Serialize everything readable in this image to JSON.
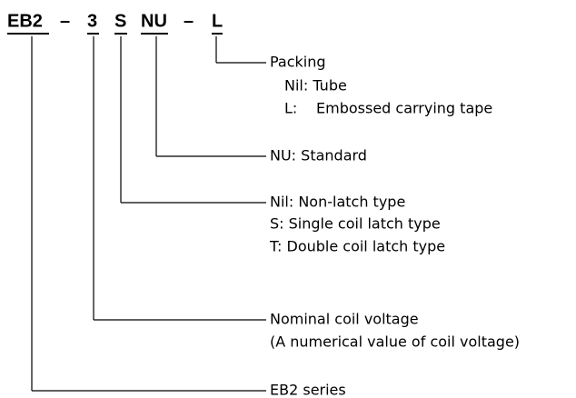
{
  "code": [
    "EB2",
    "–",
    "3",
    "S",
    "NU",
    "–",
    "L"
  ],
  "fields": [
    {
      "title": "Packing",
      "lines": [
        "Nil: Tube"
      ],
      "options": [
        {
          "key": "L:",
          "text": "Embossed carrying tape"
        }
      ]
    },
    {
      "title": "NU: Standard",
      "lines": [],
      "options": []
    },
    {
      "title": "Nil: Non-latch type",
      "lines": [
        "S: Single coil latch type",
        "T: Double coil latch type"
      ],
      "options": []
    },
    {
      "title": "Nominal coil voltage",
      "lines": [
        "(A numerical value of coil voltage)"
      ],
      "options": []
    },
    {
      "title": "EB2 series",
      "lines": [],
      "options": []
    }
  ]
}
